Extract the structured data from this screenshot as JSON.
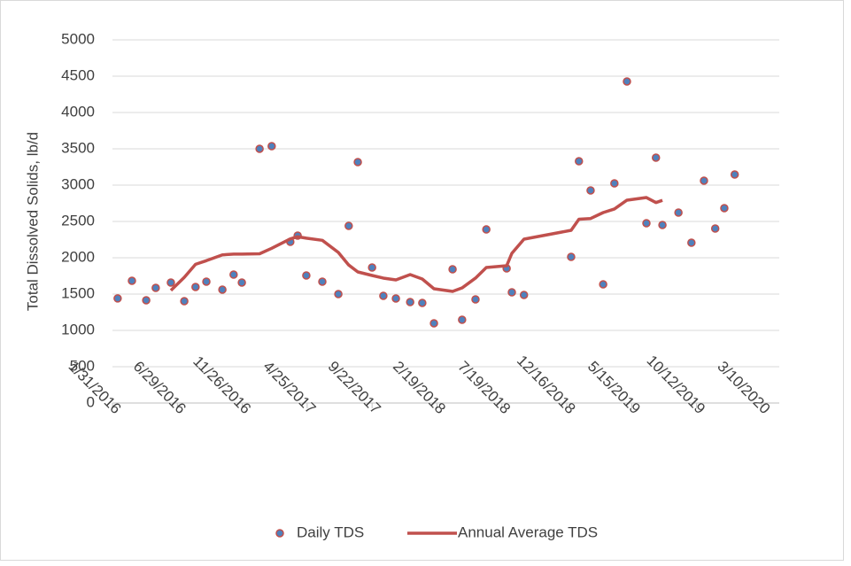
{
  "chart_data": {
    "type": "line",
    "ylabel": "Total Dissolved Solids, lb/d",
    "xlim": [
      "1/31/2016",
      "4/20/2020"
    ],
    "xticks": [
      "1/31/2016",
      "6/29/2016",
      "11/26/2016",
      "4/25/2017",
      "9/22/2017",
      "2/19/2018",
      "7/19/2018",
      "12/16/2018",
      "5/15/2019",
      "10/12/2019",
      "3/10/2020"
    ],
    "ylim": [
      0,
      5000
    ],
    "yticks": [
      0,
      500,
      1000,
      1500,
      2000,
      2500,
      3000,
      3500,
      4000,
      4500,
      5000
    ],
    "grid": true,
    "legend": "bottom",
    "series": [
      {
        "name": "Daily TDS",
        "type": "scatter",
        "color": "#4f81bd",
        "edge_color": "#c0504d",
        "x": [
          "2/12/2016",
          "3/16/2016",
          "4/18/2016",
          "5/10/2016",
          "6/14/2016",
          "7/15/2016",
          "8/10/2016",
          "9/4/2016",
          "10/11/2016",
          "11/6/2016",
          "11/25/2016",
          "1/5/2017",
          "2/2/2017",
          "3/17/2017",
          "4/3/2017",
          "4/23/2017",
          "5/30/2017",
          "7/6/2017",
          "7/30/2017",
          "8/20/2017",
          "9/22/2017",
          "10/18/2017",
          "11/16/2017",
          "12/19/2017",
          "1/16/2018",
          "2/12/2018",
          "3/27/2018",
          "4/18/2018",
          "5/19/2018",
          "6/13/2018",
          "7/30/2018",
          "8/11/2018",
          "9/8/2018",
          "12/26/2018",
          "1/13/2019",
          "2/9/2019",
          "3/10/2019",
          "4/5/2019",
          "5/4/2019",
          "6/18/2019",
          "7/10/2019",
          "7/25/2019",
          "8/31/2019",
          "9/30/2019",
          "10/29/2019",
          "11/24/2019",
          "12/15/2019",
          "1/8/2020"
        ],
        "values": [
          1440,
          1683,
          1415,
          1585,
          1659,
          1402,
          1598,
          1671,
          1561,
          1768,
          1659,
          3500,
          3537,
          2220,
          2305,
          1756,
          1671,
          1500,
          2439,
          3317,
          1866,
          1476,
          1439,
          1390,
          1378,
          1098,
          1841,
          1146,
          1427,
          2390,
          1854,
          1524,
          1488,
          2012,
          3329,
          2927,
          1634,
          3024,
          4427,
          2476,
          3378,
          2451,
          2622,
          2207,
          3061,
          2402,
          2683,
          3146
        ]
      },
      {
        "name": "Annual Average TDS",
        "type": "line",
        "color": "#c0504d",
        "x": [
          "6/14/2016",
          "7/15/2016",
          "8/10/2016",
          "9/4/2016",
          "10/11/2016",
          "11/6/2016",
          "11/25/2016",
          "1/5/2017",
          "2/2/2017",
          "3/17/2017",
          "4/3/2017",
          "4/23/2017",
          "5/30/2017",
          "7/6/2017",
          "7/30/2017",
          "8/20/2017",
          "9/22/2017",
          "10/18/2017",
          "11/16/2017",
          "12/19/2017",
          "1/16/2018",
          "2/12/2018",
          "3/27/2018",
          "4/18/2018",
          "5/19/2018",
          "6/13/2018",
          "7/30/2018",
          "8/11/2018",
          "9/8/2018",
          "12/26/2018",
          "1/13/2019",
          "2/9/2019",
          "3/10/2019",
          "4/5/2019",
          "5/4/2019",
          "6/18/2019",
          "7/10/2019",
          "7/25/2019"
        ],
        "values": [
          1550,
          1730,
          1910,
          1960,
          2040,
          2050,
          2050,
          2055,
          2130,
          2260,
          2290,
          2270,
          2240,
          2073,
          1900,
          1805,
          1756,
          1720,
          1695,
          1768,
          1707,
          1573,
          1537,
          1585,
          1720,
          1866,
          1890,
          2061,
          2256,
          2378,
          2530,
          2540,
          2622,
          2671,
          2793,
          2829,
          2760,
          2790
        ]
      }
    ]
  }
}
